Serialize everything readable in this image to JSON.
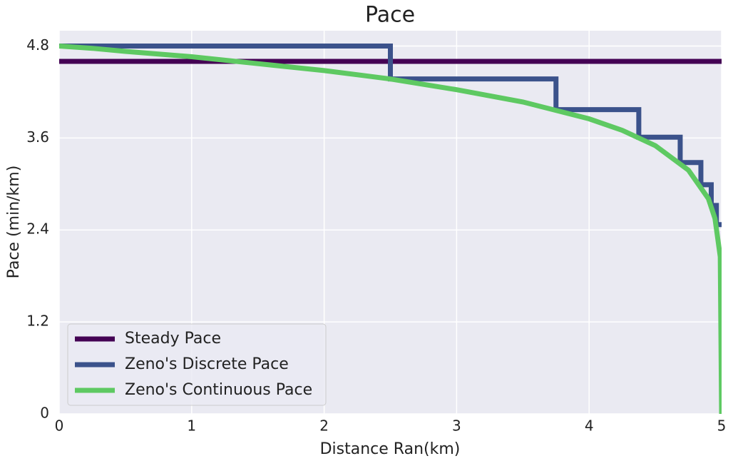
{
  "chart_data": {
    "type": "line",
    "title": "Pace",
    "xlabel": "Distance Ran(km)",
    "ylabel": "Pace (min/km)",
    "xlim": [
      0,
      5
    ],
    "ylim": [
      0,
      5
    ],
    "xticks": [
      0,
      1,
      2,
      3,
      4,
      5
    ],
    "yticks": [
      0,
      1.2,
      2.4,
      3.6,
      4.8
    ],
    "grid": true,
    "legend": "lower left",
    "series": [
      {
        "name": "Steady Pace",
        "color": "#440154",
        "x": [
          0,
          5
        ],
        "values": [
          4.6,
          4.6
        ]
      },
      {
        "name": "Zeno's Discrete Pace",
        "color": "#3b528b",
        "x": [
          0,
          2.5,
          2.5,
          3.75,
          3.75,
          4.375,
          4.375,
          4.6875,
          4.6875,
          4.84375,
          4.84375,
          4.921875,
          4.921875,
          4.9609375,
          4.9609375,
          5
        ],
        "values": [
          4.8,
          4.8,
          4.37,
          4.37,
          3.97,
          3.97,
          3.61,
          3.61,
          3.28,
          3.28,
          2.99,
          2.99,
          2.72,
          2.72,
          2.47,
          2.47
        ]
      },
      {
        "name": "Zeno's Continuous Pace",
        "color": "#5ec962",
        "x": [
          0,
          0.25,
          0.5,
          1,
          1.5,
          2,
          2.5,
          3,
          3.5,
          4,
          4.25,
          4.5,
          4.75,
          4.9,
          4.95,
          4.99,
          5
        ],
        "values": [
          4.8,
          4.77,
          4.73,
          4.66,
          4.57,
          4.48,
          4.37,
          4.23,
          4.07,
          3.85,
          3.7,
          3.5,
          3.18,
          2.81,
          2.55,
          2.05,
          0
        ]
      }
    ]
  }
}
